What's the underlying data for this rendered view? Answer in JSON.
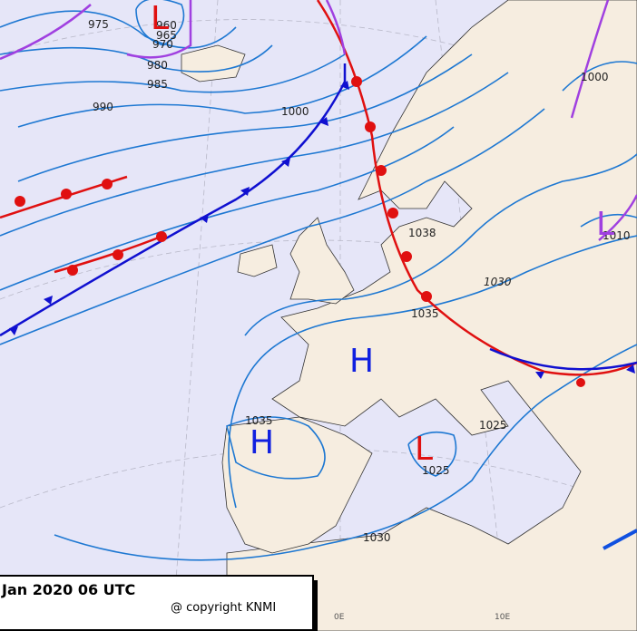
{
  "isobar_labels": [
    975,
    960,
    965,
    970,
    980,
    985,
    990,
    1000,
    1038,
    1030,
    1035,
    1025,
    1025,
    1030,
    1035,
    1000,
    1010
  ],
  "pressure_centers": [
    "L",
    "H",
    "H",
    "L",
    "L"
  ],
  "longitude_labels": [
    "0E",
    "10E"
  ],
  "footer": {
    "date": "Jan 2020 06 UTC",
    "copyright": "@ copyright KNMI"
  }
}
